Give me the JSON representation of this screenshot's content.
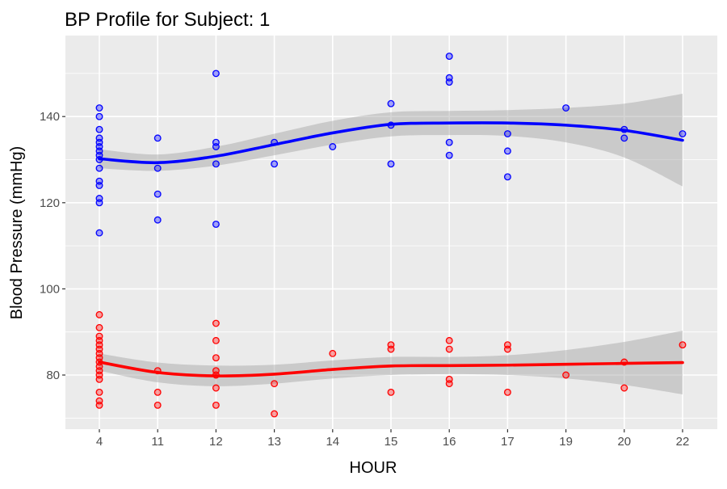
{
  "chart_data": {
    "type": "scatter",
    "title": "BP Profile for Subject: 1",
    "xlabel": "HOUR",
    "ylabel": "Blood Pressure (mmHg)",
    "x_categories": [
      "4",
      "11",
      "12",
      "13",
      "14",
      "15",
      "16",
      "17",
      "19",
      "20",
      "22"
    ],
    "y_ticks": [
      80,
      100,
      120,
      140
    ],
    "ylim": [
      66,
      158
    ],
    "grid": true,
    "legend": "none",
    "series": [
      {
        "color": "#0000ff",
        "points": [
          [
            "4",
            142
          ],
          [
            "4",
            140
          ],
          [
            "4",
            137
          ],
          [
            "4",
            135
          ],
          [
            "4",
            134
          ],
          [
            "4",
            133
          ],
          [
            "4",
            132
          ],
          [
            "4",
            131
          ],
          [
            "4",
            130
          ],
          [
            "4",
            128
          ],
          [
            "4",
            125
          ],
          [
            "4",
            124
          ],
          [
            "4",
            121
          ],
          [
            "4",
            120
          ],
          [
            "4",
            113
          ],
          [
            "11",
            135
          ],
          [
            "11",
            128
          ],
          [
            "11",
            122
          ],
          [
            "11",
            116
          ],
          [
            "12",
            150
          ],
          [
            "12",
            134
          ],
          [
            "12",
            133
          ],
          [
            "12",
            129
          ],
          [
            "12",
            115
          ],
          [
            "13",
            134
          ],
          [
            "13",
            129
          ],
          [
            "14",
            133
          ],
          [
            "15",
            143
          ],
          [
            "15",
            138
          ],
          [
            "15",
            129
          ],
          [
            "16",
            154
          ],
          [
            "16",
            149
          ],
          [
            "16",
            148
          ],
          [
            "16",
            134
          ],
          [
            "16",
            131
          ],
          [
            "17",
            136
          ],
          [
            "17",
            132
          ],
          [
            "17",
            126
          ],
          [
            "19",
            142
          ],
          [
            "20",
            137
          ],
          [
            "20",
            135
          ],
          [
            "22",
            136
          ]
        ],
        "smooth": [
          [
            "4",
            130.2
          ],
          [
            "11",
            129.3
          ],
          [
            "12",
            130.8
          ],
          [
            "13",
            133.5
          ],
          [
            "14",
            136.2
          ],
          [
            "15",
            138.2
          ],
          [
            "16",
            138.5
          ],
          [
            "17",
            138.5
          ],
          [
            "19",
            138.0
          ],
          [
            "20",
            136.8
          ],
          [
            "22",
            134.5
          ]
        ],
        "band": [
          [
            "4",
            128.0,
            132.4
          ],
          [
            "11",
            127.4,
            131.2
          ],
          [
            "12",
            128.6,
            133.0
          ],
          [
            "13",
            131.0,
            136.0
          ],
          [
            "14",
            133.5,
            139.0
          ],
          [
            "15",
            135.4,
            141.0
          ],
          [
            "16",
            135.7,
            141.3
          ],
          [
            "17",
            135.5,
            141.5
          ],
          [
            "19",
            134.0,
            142.0
          ],
          [
            "20",
            130.5,
            143.0
          ],
          [
            "22",
            123.8,
            145.3
          ]
        ]
      },
      {
        "color": "#ff0000",
        "points": [
          [
            "4",
            94
          ],
          [
            "4",
            91
          ],
          [
            "4",
            89
          ],
          [
            "4",
            88
          ],
          [
            "4",
            87
          ],
          [
            "4",
            86
          ],
          [
            "4",
            85
          ],
          [
            "4",
            84
          ],
          [
            "4",
            83
          ],
          [
            "4",
            82
          ],
          [
            "4",
            81
          ],
          [
            "4",
            80
          ],
          [
            "4",
            79
          ],
          [
            "4",
            76
          ],
          [
            "4",
            74
          ],
          [
            "4",
            73
          ],
          [
            "11",
            81
          ],
          [
            "11",
            76
          ],
          [
            "11",
            73
          ],
          [
            "12",
            92
          ],
          [
            "12",
            88
          ],
          [
            "12",
            84
          ],
          [
            "12",
            81
          ],
          [
            "12",
            80
          ],
          [
            "12",
            77
          ],
          [
            "12",
            73
          ],
          [
            "13",
            78
          ],
          [
            "13",
            71
          ],
          [
            "14",
            85
          ],
          [
            "15",
            87
          ],
          [
            "15",
            86
          ],
          [
            "15",
            76
          ],
          [
            "16",
            88
          ],
          [
            "16",
            86
          ],
          [
            "16",
            79
          ],
          [
            "16",
            78
          ],
          [
            "17",
            87
          ],
          [
            "17",
            86
          ],
          [
            "17",
            76
          ],
          [
            "19",
            80
          ],
          [
            "20",
            83
          ],
          [
            "20",
            77
          ],
          [
            "22",
            87
          ]
        ],
        "smooth": [
          [
            "4",
            83.0
          ],
          [
            "11",
            80.6
          ],
          [
            "12",
            79.8
          ],
          [
            "13",
            80.2
          ],
          [
            "14",
            81.3
          ],
          [
            "15",
            82.1
          ],
          [
            "16",
            82.2
          ],
          [
            "17",
            82.3
          ],
          [
            "19",
            82.5
          ],
          [
            "20",
            82.7
          ],
          [
            "22",
            82.9
          ]
        ],
        "band": [
          [
            "4",
            81.0,
            85.0
          ],
          [
            "11",
            78.3,
            82.9
          ],
          [
            "12",
            77.4,
            82.2
          ],
          [
            "13",
            78.0,
            82.4
          ],
          [
            "14",
            79.2,
            83.4
          ],
          [
            "15",
            80.0,
            84.2
          ],
          [
            "16",
            80.2,
            84.2
          ],
          [
            "17",
            80.0,
            84.6
          ],
          [
            "19",
            79.2,
            85.8
          ],
          [
            "20",
            77.7,
            87.7
          ],
          [
            "22",
            75.5,
            90.3
          ]
        ]
      }
    ]
  }
}
